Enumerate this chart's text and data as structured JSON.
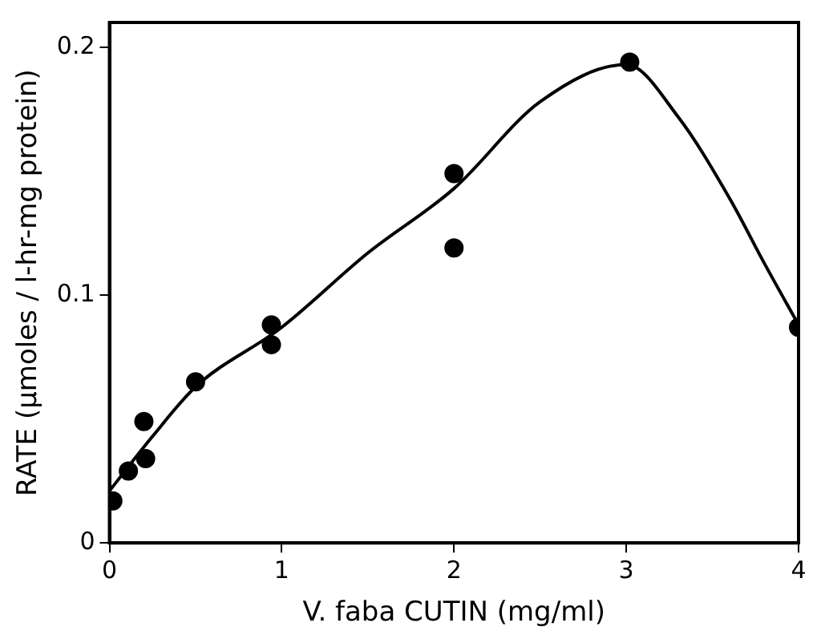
{
  "chart_data": {
    "type": "scatter",
    "xlabel": "V. faba CUTIN (mg/ml)",
    "ylabel": "RATE (μmoles / l-hr-mg protein)",
    "xlim": [
      0,
      4
    ],
    "ylim": [
      0,
      0.21
    ],
    "xticks": [
      0,
      1,
      2,
      3,
      4
    ],
    "yticks": [
      0,
      0.1,
      0.2
    ],
    "grid": false,
    "legend": false,
    "marker": "circle",
    "series": [
      {
        "color": "#000000",
        "x": [
          0.02,
          0.11,
          0.2,
          0.21,
          0.5,
          0.94,
          0.94,
          2.0,
          2.0,
          3.02,
          4.0
        ],
        "values": [
          0.017,
          0.029,
          0.049,
          0.034,
          0.065,
          0.088,
          0.08,
          0.149,
          0.119,
          0.194,
          0.087
        ]
      },
      {
        "type": "line",
        "color": "#000000",
        "marker": "none",
        "line_style": "solid",
        "x": [
          0,
          0.25,
          0.5,
          1,
          1.5,
          2,
          2.5,
          3,
          3.3,
          3.6,
          3.8,
          4
        ],
        "values": [
          0.021,
          0.043,
          0.063,
          0.087,
          0.117,
          0.143,
          0.178,
          0.193,
          0.172,
          0.139,
          0.113,
          0.088
        ]
      }
    ]
  }
}
